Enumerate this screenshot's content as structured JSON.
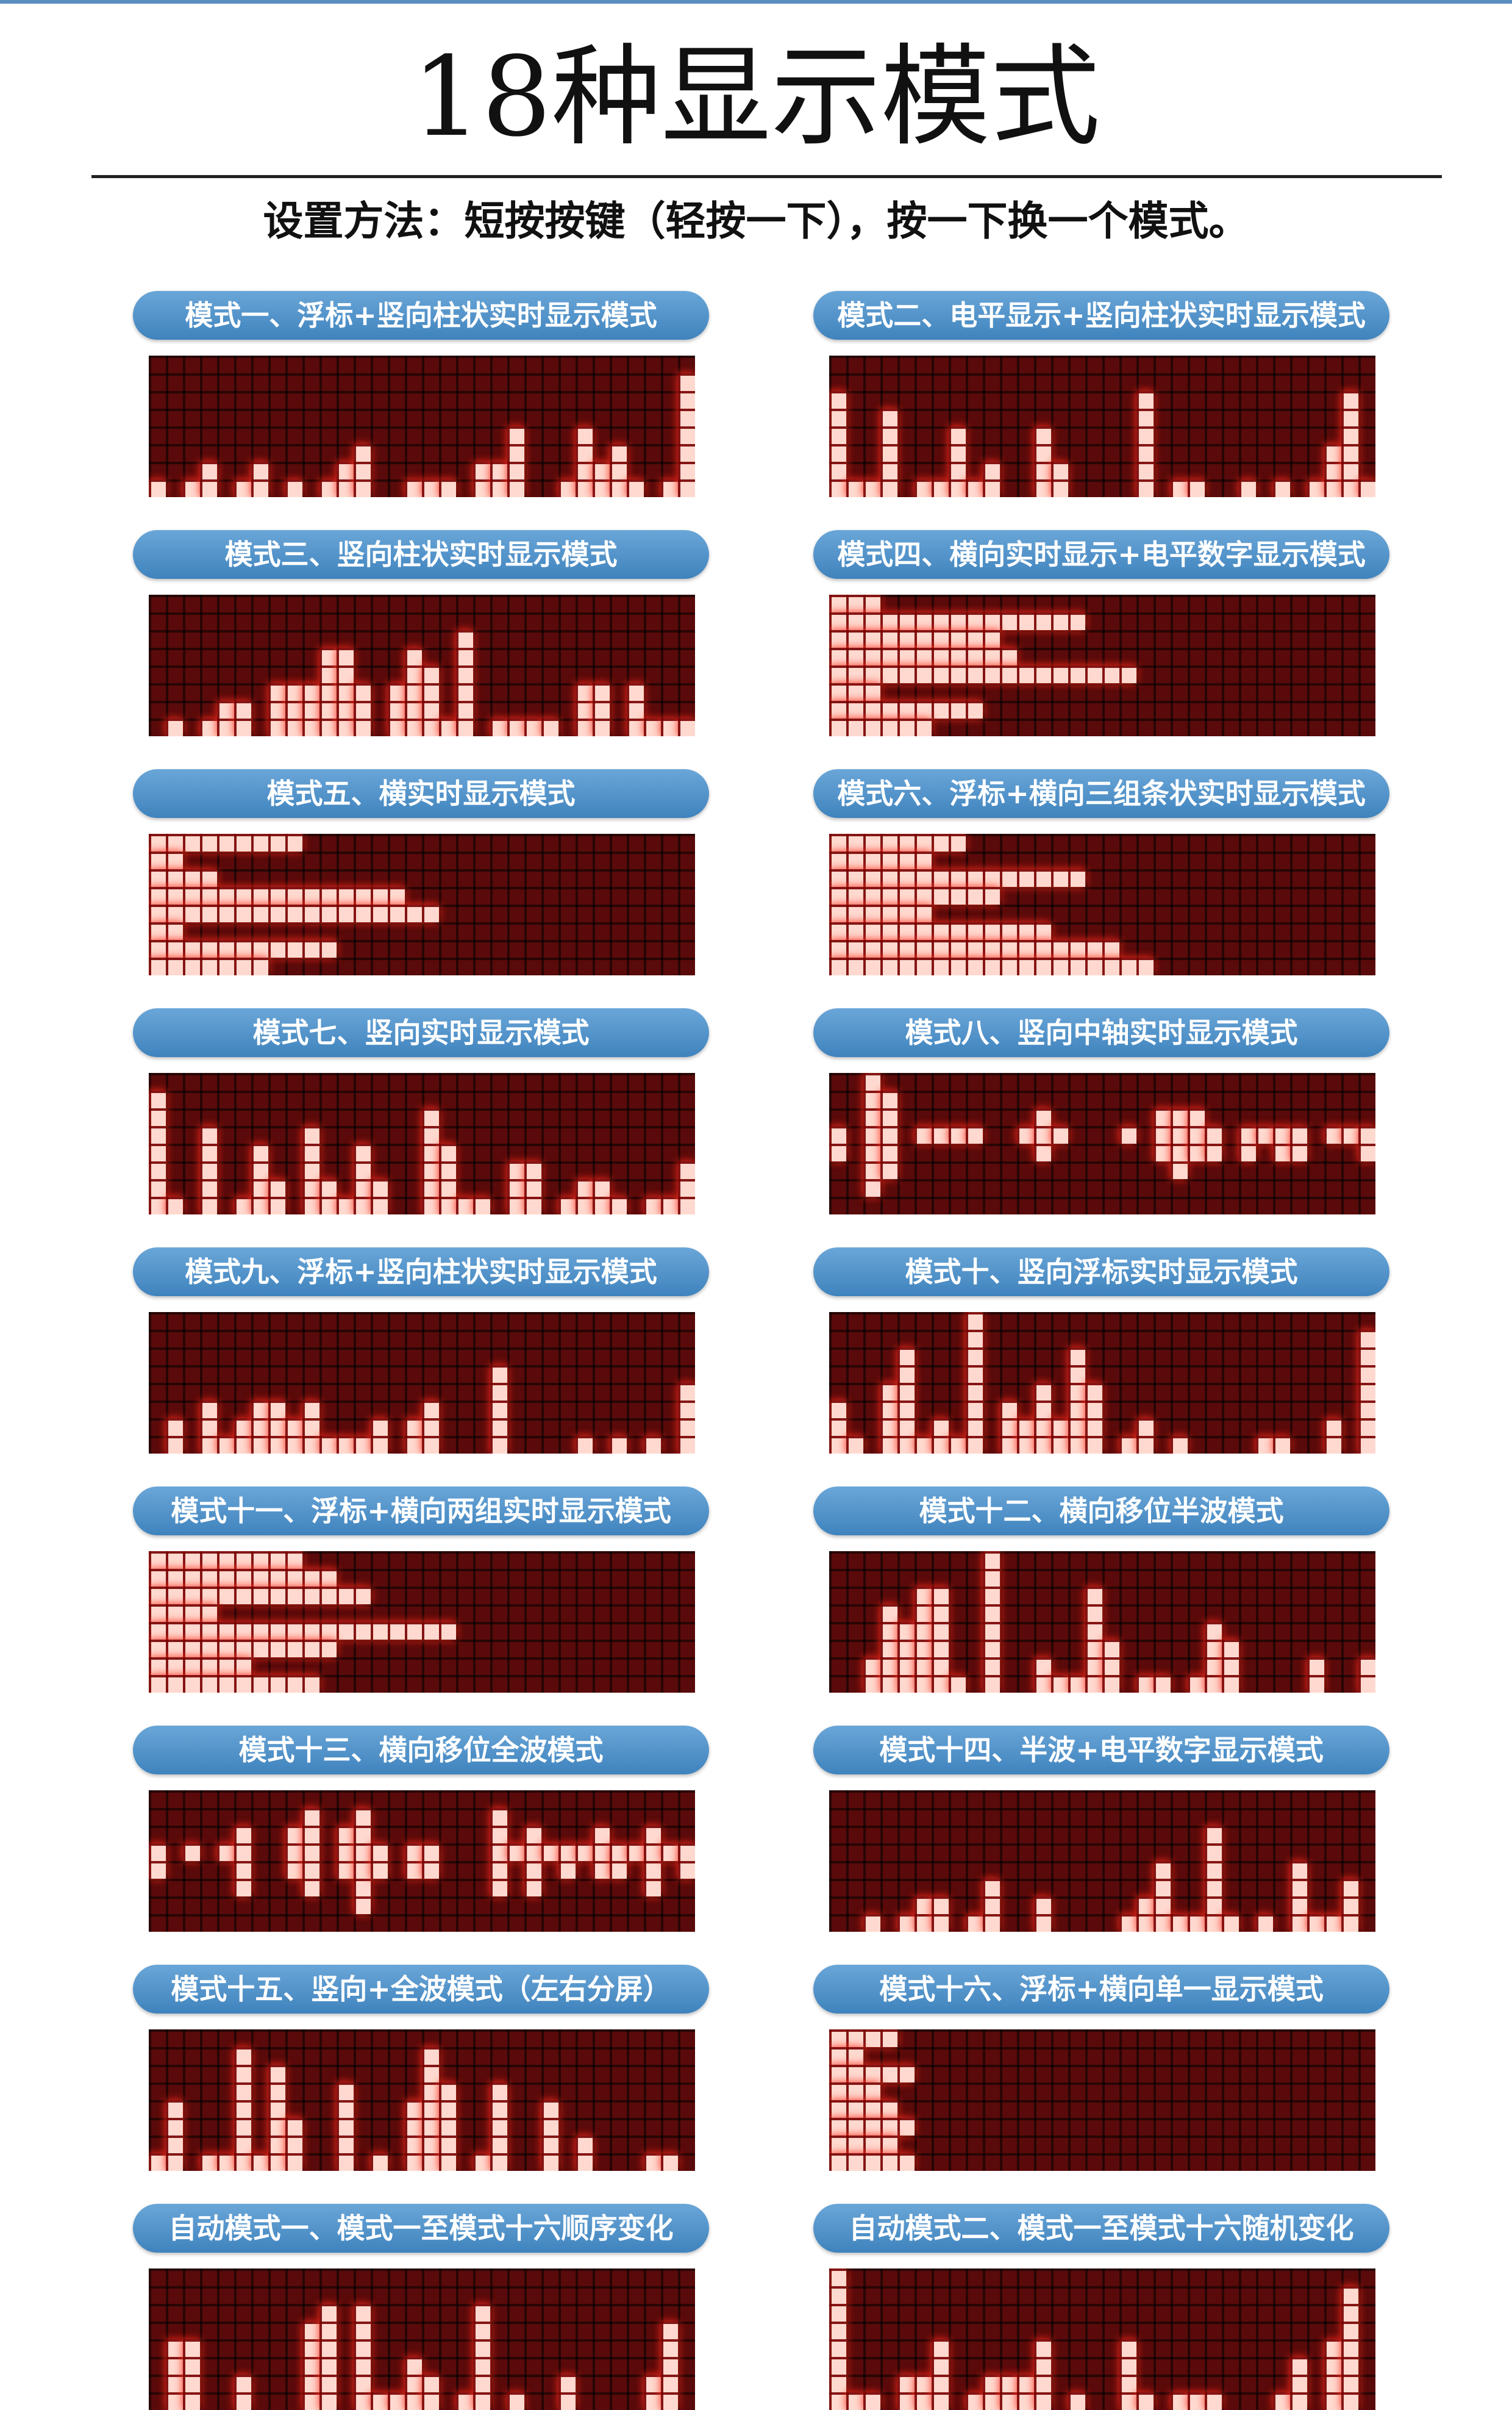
{
  "header": {
    "title": "18种显示模式",
    "subtitle": "设置方法：短按按键（轻按一下），按一下换一个模式。"
  },
  "modes": [
    "模式一、浮标+竖向柱状实时显示模式",
    "模式二、电平显示+竖向柱状实时显示模式",
    "模式三、竖向柱状实时显示模式",
    "模式四、横向实时显示+电平数字显示模式",
    "模式五、横实时显示模式",
    "模式六、浮标+横向三组条状实时显示模式",
    "模式七、竖向实时显示模式",
    "模式八、竖向中轴实时显示模式",
    "模式九、浮标+竖向柱状实时显示模式",
    "模式十、竖向浮标实时显示模式",
    "模式十一、浮标+横向两组实时显示模式",
    "模式十二、横向移位半波模式",
    "模式十三、横向移位全波模式",
    "模式十四、半波+电平数字显示模式",
    "模式十五、竖向+全波模式（左右分屏）",
    "模式十六、浮标+横向单一显示模式",
    "自动模式一、模式一至模式十六顺序变化",
    "自动模式二、模式一至模式十六随机变化"
  ]
}
